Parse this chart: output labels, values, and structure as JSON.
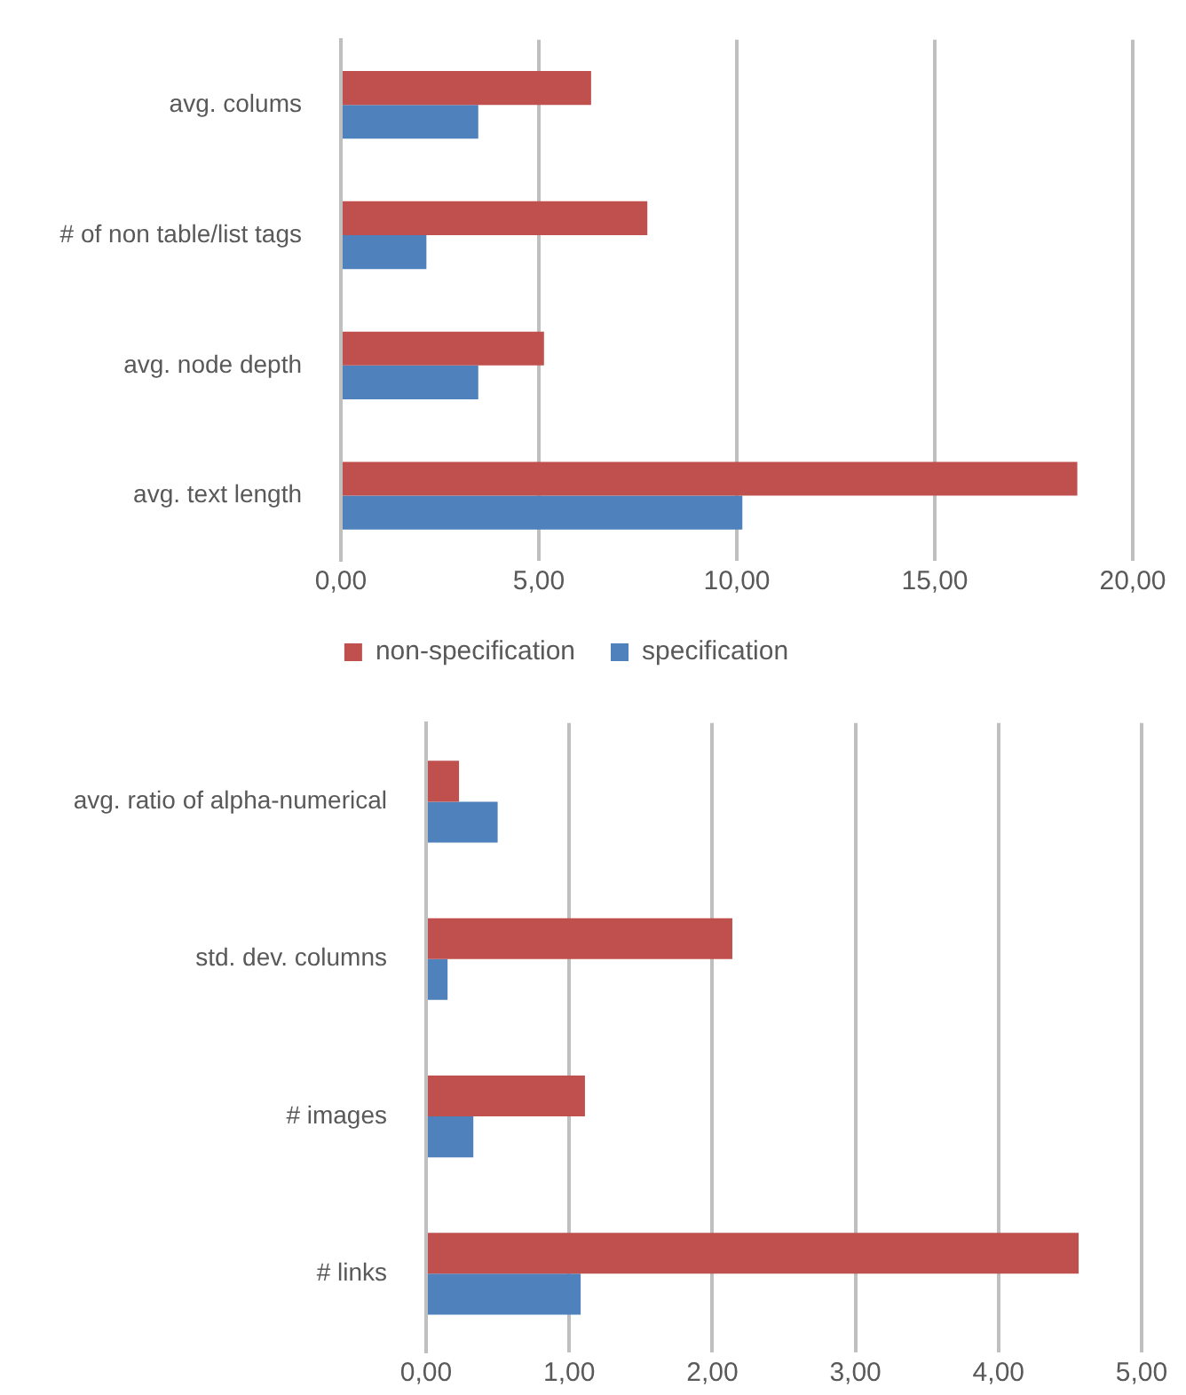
{
  "chart_data": [
    {
      "type": "bar",
      "orientation": "horizontal",
      "categories": [
        "avg. colums",
        "# of non table/list tags",
        "avg. node depth",
        "avg. text length"
      ],
      "series": [
        {
          "name": "non-specification",
          "color": "#c0504d",
          "values": [
            6.32,
            7.74,
            5.13,
            18.6
          ]
        },
        {
          "name": "specification",
          "color": "#4f81bd",
          "values": [
            3.47,
            2.16,
            3.47,
            10.14
          ]
        }
      ],
      "xlim": [
        0,
        20
      ],
      "xticks": [
        {
          "value": 0,
          "label": "0,00"
        },
        {
          "value": 5,
          "label": "5,00"
        },
        {
          "value": 10,
          "label": "10,00"
        },
        {
          "value": 15,
          "label": "15,00"
        },
        {
          "value": 20,
          "label": "20,00"
        }
      ],
      "grid": "x",
      "legend": "bottom"
    },
    {
      "type": "bar",
      "orientation": "horizontal",
      "categories": [
        "avg. ratio of alpha-numerical",
        "std. dev. columns",
        "# images",
        "# links"
      ],
      "series": [
        {
          "color": "#c0504d",
          "values": [
            0.23,
            2.14,
            1.11,
            4.56
          ]
        },
        {
          "color": "#4f81bd",
          "values": [
            0.5,
            0.15,
            0.33,
            1.08
          ]
        }
      ],
      "xlim": [
        0,
        5
      ],
      "xticks": [
        {
          "value": 0,
          "label": "0,00"
        },
        {
          "value": 1,
          "label": "1,00"
        },
        {
          "value": 2,
          "label": "2,00"
        },
        {
          "value": 3,
          "label": "3,00"
        },
        {
          "value": 4,
          "label": "4,00"
        },
        {
          "value": 5,
          "label": "5,00"
        }
      ],
      "grid": "x",
      "legend": false
    }
  ]
}
